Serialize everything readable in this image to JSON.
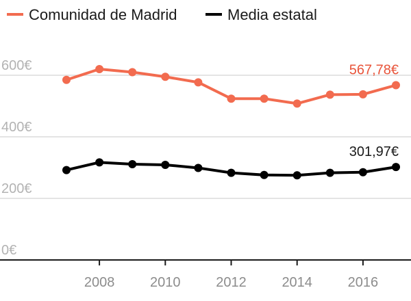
{
  "chart_data": {
    "type": "line",
    "x": [
      2007,
      2008,
      2009,
      2010,
      2011,
      2012,
      2013,
      2014,
      2015,
      2016,
      2017
    ],
    "x_ticks": [
      "2008",
      "2010",
      "2012",
      "2014",
      "2016"
    ],
    "y_ticks": [
      "0€",
      "200€",
      "400€",
      "600€"
    ],
    "ylim": [
      0,
      650
    ],
    "grid": "horizontal",
    "legend_position": "top-left",
    "series": [
      {
        "name": "Comunidad de Madrid",
        "color": "#f26b4f",
        "values": [
          585,
          620,
          610,
          595,
          577,
          524,
          524,
          508,
          537,
          538,
          567.78
        ],
        "end_label": "567,78€"
      },
      {
        "name": "Media estatal",
        "color": "#000000",
        "values": [
          292,
          317,
          311,
          309,
          299,
          283,
          276,
          275,
          283,
          285,
          301.97
        ],
        "end_label": "301,97€"
      }
    ]
  }
}
